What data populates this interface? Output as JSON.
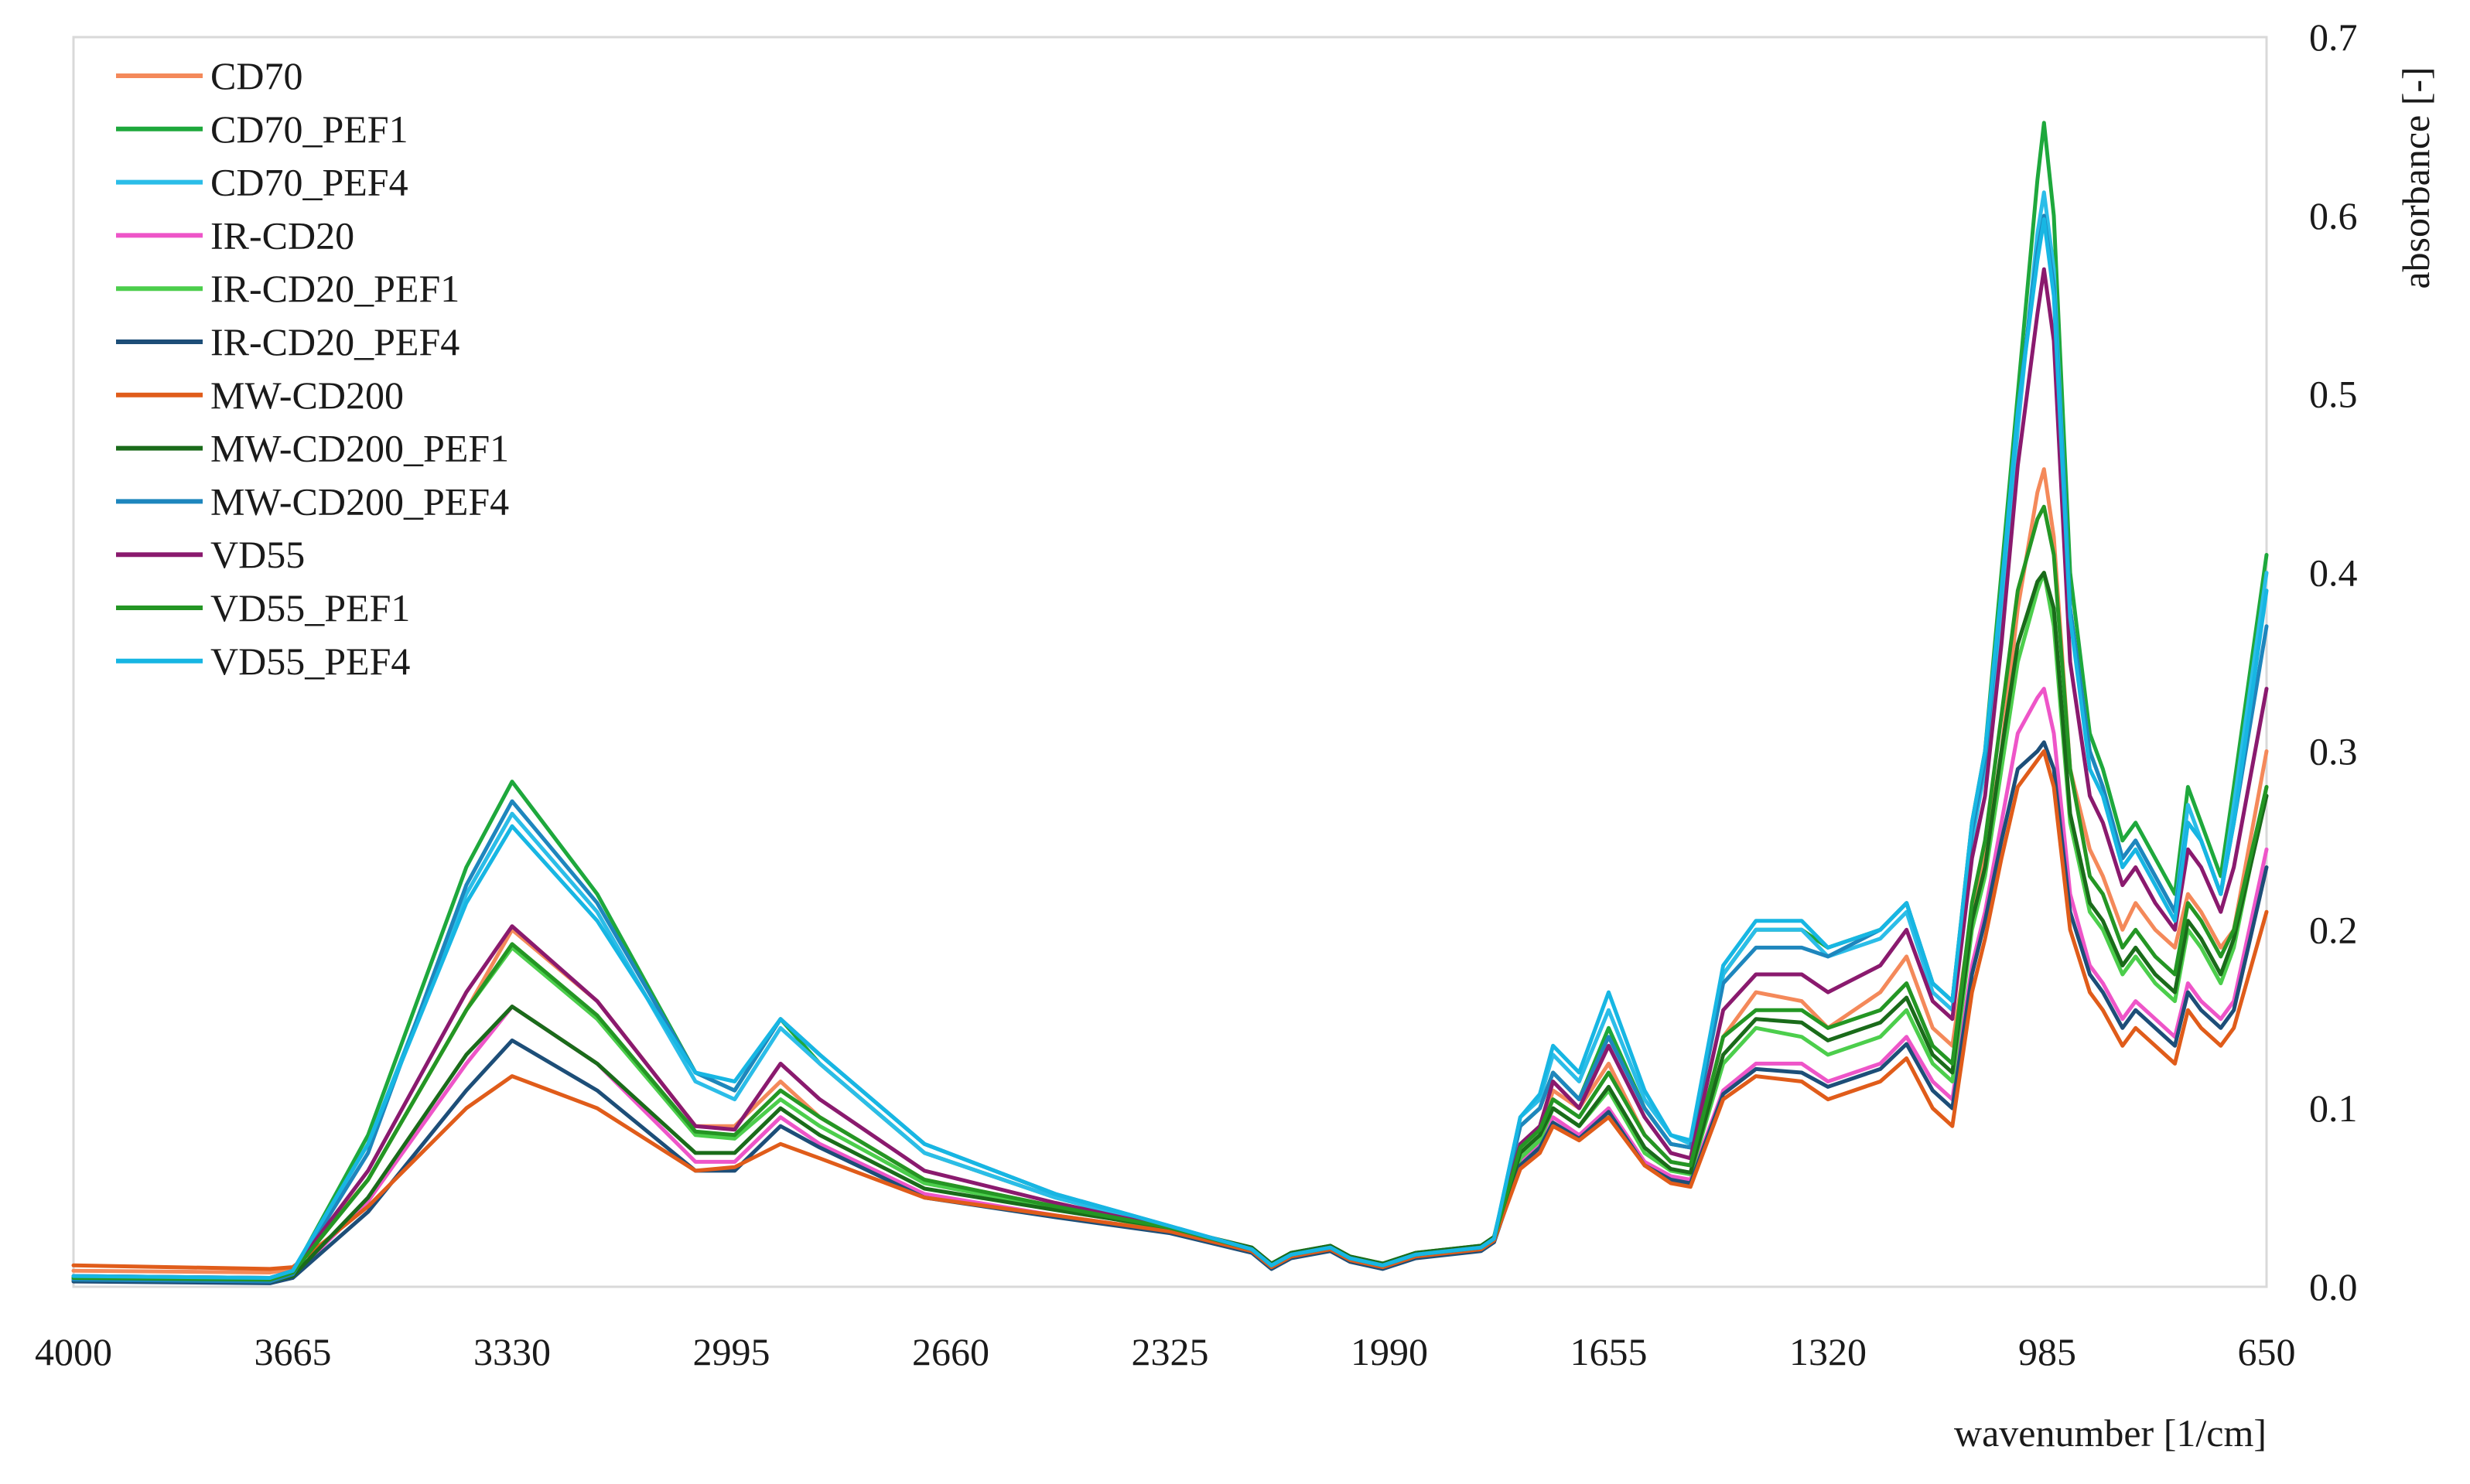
{
  "chart_data": {
    "type": "line",
    "title": "",
    "xlabel": "wavenumber [1/cm]",
    "ylabel": "absorbance [-]",
    "xlim": [
      4000,
      650
    ],
    "ylim": [
      0,
      0.7
    ],
    "x_reversed": true,
    "grid": false,
    "legend_position": "top-left",
    "x_ticks": [
      4000,
      3665,
      3330,
      2995,
      2660,
      2325,
      1990,
      1655,
      1320,
      985,
      650
    ],
    "x_tick_labels": [
      "4000",
      "3665",
      "3330",
      "2995",
      "2660",
      "2325",
      "1990",
      "1655",
      "1320",
      "985",
      "650"
    ],
    "y_ticks": [
      0,
      0.1,
      0.2,
      0.3,
      0.4,
      0.5,
      0.6,
      0.7
    ],
    "y_tick_labels": [
      "0.0",
      "0.1",
      "0.2",
      "0.3",
      "0.4",
      "0.5",
      "0.6",
      "0.7"
    ],
    "x": [
      4000,
      3700,
      3665,
      3550,
      3400,
      3330,
      3200,
      3050,
      2990,
      2920,
      2860,
      2700,
      2500,
      2325,
      2200,
      2170,
      2140,
      2080,
      2050,
      2000,
      1950,
      1850,
      1830,
      1790,
      1760,
      1740,
      1700,
      1655,
      1600,
      1560,
      1530,
      1480,
      1430,
      1360,
      1320,
      1240,
      1200,
      1160,
      1130,
      1100,
      1080,
      1055,
      1030,
      1000,
      990,
      975,
      950,
      920,
      900,
      870,
      850,
      820,
      790,
      770,
      750,
      720,
      700,
      650
    ],
    "series": [
      {
        "name": "CD70",
        "color": "#f4895a",
        "values": [
          0.009,
          0.008,
          0.01,
          0.06,
          0.155,
          0.2,
          0.16,
          0.09,
          0.09,
          0.115,
          0.095,
          0.06,
          0.045,
          0.032,
          0.02,
          0.012,
          0.018,
          0.022,
          0.016,
          0.012,
          0.018,
          0.022,
          0.027,
          0.075,
          0.085,
          0.11,
          0.1,
          0.125,
          0.085,
          0.07,
          0.068,
          0.14,
          0.165,
          0.16,
          0.145,
          0.165,
          0.185,
          0.145,
          0.135,
          0.21,
          0.24,
          0.3,
          0.38,
          0.445,
          0.458,
          0.42,
          0.29,
          0.245,
          0.23,
          0.2,
          0.215,
          0.2,
          0.19,
          0.22,
          0.21,
          0.19,
          0.2,
          0.3
        ]
      },
      {
        "name": "CD70_PEF1",
        "color": "#1ea83c",
        "values": [
          0.005,
          0.004,
          0.008,
          0.085,
          0.235,
          0.283,
          0.22,
          0.12,
          0.11,
          0.15,
          0.125,
          0.075,
          0.05,
          0.033,
          0.021,
          0.013,
          0.019,
          0.023,
          0.017,
          0.013,
          0.019,
          0.023,
          0.028,
          0.09,
          0.1,
          0.12,
          0.105,
          0.145,
          0.1,
          0.08,
          0.078,
          0.175,
          0.2,
          0.2,
          0.19,
          0.2,
          0.215,
          0.17,
          0.16,
          0.26,
          0.3,
          0.4,
          0.5,
          0.62,
          0.652,
          0.6,
          0.4,
          0.31,
          0.29,
          0.25,
          0.26,
          0.24,
          0.22,
          0.28,
          0.26,
          0.23,
          0.28,
          0.41
        ]
      },
      {
        "name": "CD70_PEF4",
        "color": "#2bbde8",
        "values": [
          0.006,
          0.005,
          0.009,
          0.08,
          0.22,
          0.265,
          0.21,
          0.115,
          0.105,
          0.145,
          0.125,
          0.075,
          0.05,
          0.033,
          0.02,
          0.011,
          0.018,
          0.022,
          0.016,
          0.012,
          0.018,
          0.022,
          0.027,
          0.095,
          0.105,
          0.13,
          0.115,
          0.155,
          0.105,
          0.085,
          0.08,
          0.175,
          0.2,
          0.2,
          0.185,
          0.195,
          0.21,
          0.165,
          0.155,
          0.25,
          0.29,
          0.38,
          0.48,
          0.59,
          0.613,
          0.57,
          0.38,
          0.3,
          0.28,
          0.24,
          0.25,
          0.23,
          0.21,
          0.27,
          0.25,
          0.22,
          0.27,
          0.4
        ]
      },
      {
        "name": "IR-CD20",
        "color": "#ee55c8",
        "values": [
          0.004,
          0.003,
          0.006,
          0.048,
          0.125,
          0.157,
          0.125,
          0.07,
          0.07,
          0.095,
          0.08,
          0.052,
          0.04,
          0.031,
          0.02,
          0.011,
          0.017,
          0.021,
          0.015,
          0.011,
          0.017,
          0.021,
          0.026,
          0.07,
          0.08,
          0.095,
          0.085,
          0.1,
          0.07,
          0.062,
          0.06,
          0.11,
          0.125,
          0.125,
          0.115,
          0.125,
          0.14,
          0.115,
          0.105,
          0.18,
          0.21,
          0.26,
          0.31,
          0.33,
          0.335,
          0.31,
          0.22,
          0.18,
          0.17,
          0.15,
          0.16,
          0.15,
          0.14,
          0.17,
          0.16,
          0.15,
          0.16,
          0.245
        ]
      },
      {
        "name": "IR-CD20_PEF1",
        "color": "#4cce4c",
        "values": [
          0.005,
          0.004,
          0.008,
          0.06,
          0.155,
          0.19,
          0.15,
          0.085,
          0.083,
          0.105,
          0.09,
          0.058,
          0.044,
          0.032,
          0.02,
          0.012,
          0.018,
          0.022,
          0.016,
          0.012,
          0.018,
          0.022,
          0.027,
          0.072,
          0.082,
          0.1,
          0.09,
          0.11,
          0.075,
          0.065,
          0.063,
          0.125,
          0.145,
          0.14,
          0.13,
          0.14,
          0.155,
          0.125,
          0.115,
          0.2,
          0.23,
          0.29,
          0.35,
          0.39,
          0.4,
          0.37,
          0.26,
          0.21,
          0.2,
          0.175,
          0.185,
          0.17,
          0.16,
          0.2,
          0.19,
          0.17,
          0.19,
          0.28
        ]
      },
      {
        "name": "IR-CD20_PEF4",
        "color": "#1d4e78",
        "values": [
          0.003,
          0.002,
          0.005,
          0.042,
          0.11,
          0.138,
          0.11,
          0.065,
          0.065,
          0.09,
          0.078,
          0.05,
          0.039,
          0.03,
          0.019,
          0.01,
          0.016,
          0.02,
          0.014,
          0.01,
          0.016,
          0.02,
          0.025,
          0.068,
          0.078,
          0.092,
          0.083,
          0.098,
          0.068,
          0.06,
          0.058,
          0.108,
          0.122,
          0.12,
          0.112,
          0.122,
          0.136,
          0.11,
          0.1,
          0.175,
          0.205,
          0.25,
          0.29,
          0.3,
          0.305,
          0.29,
          0.21,
          0.175,
          0.165,
          0.145,
          0.155,
          0.145,
          0.135,
          0.165,
          0.155,
          0.145,
          0.155,
          0.235
        ]
      },
      {
        "name": "MW-CD200",
        "color": "#e05c1a",
        "values": [
          0.012,
          0.01,
          0.011,
          0.045,
          0.1,
          0.118,
          0.1,
          0.065,
          0.067,
          0.08,
          0.072,
          0.05,
          0.04,
          0.031,
          0.02,
          0.011,
          0.017,
          0.021,
          0.015,
          0.011,
          0.017,
          0.021,
          0.026,
          0.066,
          0.075,
          0.09,
          0.082,
          0.095,
          0.068,
          0.058,
          0.056,
          0.105,
          0.118,
          0.115,
          0.105,
          0.115,
          0.128,
          0.1,
          0.09,
          0.165,
          0.195,
          0.24,
          0.28,
          0.295,
          0.3,
          0.28,
          0.2,
          0.165,
          0.155,
          0.135,
          0.145,
          0.135,
          0.125,
          0.155,
          0.145,
          0.135,
          0.145,
          0.21
        ]
      },
      {
        "name": "MW-CD200_PEF1",
        "color": "#1a6b1a",
        "values": [
          0.004,
          0.003,
          0.006,
          0.05,
          0.13,
          0.157,
          0.125,
          0.075,
          0.075,
          0.1,
          0.085,
          0.055,
          0.043,
          0.033,
          0.022,
          0.013,
          0.019,
          0.023,
          0.017,
          0.013,
          0.019,
          0.023,
          0.028,
          0.075,
          0.085,
          0.1,
          0.09,
          0.112,
          0.078,
          0.066,
          0.064,
          0.13,
          0.15,
          0.148,
          0.138,
          0.148,
          0.162,
          0.13,
          0.12,
          0.205,
          0.235,
          0.3,
          0.36,
          0.395,
          0.4,
          0.38,
          0.265,
          0.215,
          0.205,
          0.18,
          0.19,
          0.175,
          0.165,
          0.205,
          0.195,
          0.175,
          0.195,
          0.275
        ]
      },
      {
        "name": "MW-CD200_PEF4",
        "color": "#1e86bd",
        "values": [
          0.004,
          0.003,
          0.007,
          0.075,
          0.225,
          0.272,
          0.215,
          0.12,
          0.11,
          0.15,
          0.13,
          0.08,
          0.052,
          0.034,
          0.021,
          0.012,
          0.018,
          0.022,
          0.016,
          0.012,
          0.018,
          0.022,
          0.027,
          0.09,
          0.1,
          0.12,
          0.105,
          0.14,
          0.1,
          0.08,
          0.078,
          0.17,
          0.19,
          0.19,
          0.185,
          0.2,
          0.215,
          0.17,
          0.16,
          0.255,
          0.295,
          0.39,
          0.49,
          0.58,
          0.6,
          0.56,
          0.38,
          0.3,
          0.28,
          0.24,
          0.25,
          0.23,
          0.21,
          0.26,
          0.25,
          0.22,
          0.26,
          0.37
        ]
      },
      {
        "name": "VD55",
        "color": "#8a1a6e",
        "values": [
          0.006,
          0.005,
          0.009,
          0.065,
          0.165,
          0.202,
          0.16,
          0.09,
          0.088,
          0.125,
          0.105,
          0.065,
          0.047,
          0.033,
          0.021,
          0.012,
          0.018,
          0.022,
          0.016,
          0.012,
          0.018,
          0.022,
          0.027,
          0.08,
          0.09,
          0.115,
          0.1,
          0.135,
          0.095,
          0.075,
          0.072,
          0.155,
          0.175,
          0.175,
          0.165,
          0.18,
          0.2,
          0.16,
          0.15,
          0.24,
          0.275,
          0.36,
          0.46,
          0.545,
          0.57,
          0.53,
          0.35,
          0.275,
          0.26,
          0.225,
          0.235,
          0.215,
          0.2,
          0.245,
          0.235,
          0.21,
          0.235,
          0.335
        ]
      },
      {
        "name": "VD55_PEF1",
        "color": "#249624",
        "values": [
          0.005,
          0.004,
          0.008,
          0.06,
          0.155,
          0.192,
          0.152,
          0.087,
          0.085,
          0.11,
          0.095,
          0.06,
          0.045,
          0.033,
          0.021,
          0.012,
          0.018,
          0.022,
          0.016,
          0.012,
          0.018,
          0.022,
          0.027,
          0.078,
          0.088,
          0.105,
          0.095,
          0.12,
          0.085,
          0.07,
          0.068,
          0.14,
          0.155,
          0.155,
          0.145,
          0.155,
          0.17,
          0.135,
          0.125,
          0.215,
          0.25,
          0.32,
          0.39,
          0.43,
          0.437,
          0.41,
          0.29,
          0.23,
          0.22,
          0.19,
          0.2,
          0.185,
          0.175,
          0.215,
          0.205,
          0.185,
          0.2,
          0.28
        ]
      },
      {
        "name": "VD55_PEF4",
        "color": "#17b6e3",
        "values": [
          0.006,
          0.005,
          0.009,
          0.08,
          0.215,
          0.258,
          0.205,
          0.12,
          0.115,
          0.15,
          0.13,
          0.08,
          0.052,
          0.034,
          0.021,
          0.012,
          0.018,
          0.022,
          0.016,
          0.012,
          0.018,
          0.022,
          0.027,
          0.095,
          0.108,
          0.135,
          0.12,
          0.165,
          0.11,
          0.085,
          0.082,
          0.18,
          0.205,
          0.205,
          0.19,
          0.2,
          0.215,
          0.17,
          0.16,
          0.26,
          0.3,
          0.39,
          0.49,
          0.575,
          0.598,
          0.555,
          0.375,
          0.29,
          0.275,
          0.235,
          0.245,
          0.225,
          0.205,
          0.26,
          0.25,
          0.22,
          0.26,
          0.39
        ]
      }
    ]
  }
}
